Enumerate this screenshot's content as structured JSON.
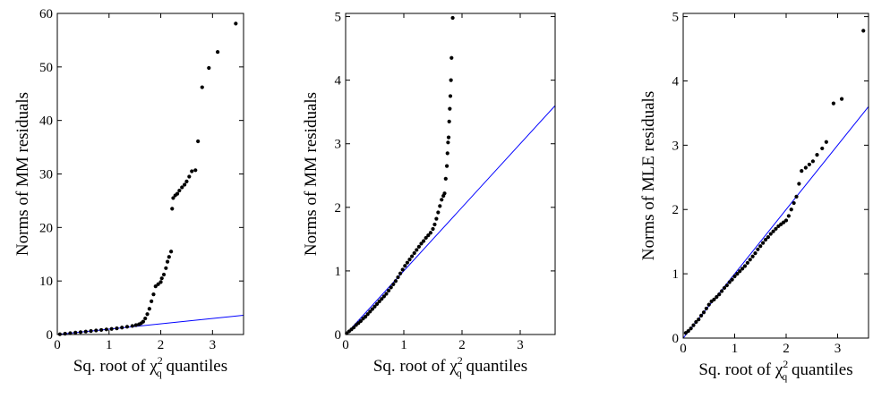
{
  "colors": {
    "points": "#000000",
    "reference_line": "#0000ff",
    "frame": "#000000",
    "background": "#ffffff"
  },
  "chart_data": [
    {
      "type": "scatter",
      "title": "",
      "xlabel": {
        "prefix": "Sq. root of ",
        "symbol": "χ",
        "sup": "2",
        "sub": "q",
        "suffix": " quantiles"
      },
      "ylabel": "Norms of MM residuals",
      "xlim": [
        0,
        3.6
      ],
      "ylim": [
        0,
        60
      ],
      "x_ticks": [
        "0",
        "1",
        "2",
        "3"
      ],
      "y_ticks": [
        "0",
        "10",
        "20",
        "30",
        "40",
        "50",
        "60"
      ],
      "grid": false,
      "legend": "none",
      "reference_line": {
        "x": [
          0,
          3.6
        ],
        "y": [
          0,
          3.6
        ]
      },
      "points": {
        "x": [
          0.05,
          0.15,
          0.25,
          0.35,
          0.45,
          0.55,
          0.65,
          0.75,
          0.85,
          0.95,
          1.05,
          1.15,
          1.25,
          1.35,
          1.45,
          1.52,
          1.58,
          1.62,
          1.66,
          1.7,
          1.74,
          1.78,
          1.82,
          1.86,
          1.9,
          1.95,
          2.0,
          2.02,
          2.06,
          2.1,
          2.13,
          2.16,
          2.2,
          2.22,
          2.24,
          2.28,
          2.32,
          2.36,
          2.41,
          2.46,
          2.5,
          2.55,
          2.6,
          2.67,
          2.72,
          2.8,
          2.93,
          3.1,
          3.45
        ],
        "y": [
          0.05,
          0.15,
          0.25,
          0.35,
          0.45,
          0.55,
          0.65,
          0.75,
          0.85,
          0.95,
          1.05,
          1.15,
          1.3,
          1.45,
          1.6,
          1.75,
          1.9,
          2.1,
          2.4,
          3.0,
          3.8,
          4.8,
          6.2,
          7.5,
          9.0,
          9.4,
          9.8,
          10.5,
          11.2,
          12.4,
          13.6,
          14.5,
          15.5,
          23.5,
          25.5,
          26.0,
          26.3,
          26.9,
          27.5,
          28.0,
          28.6,
          29.5,
          30.5,
          30.7,
          36.1,
          46.2,
          49.8,
          52.8,
          58.1
        ]
      }
    },
    {
      "type": "scatter",
      "title": "",
      "xlabel": {
        "prefix": "Sq. root of ",
        "symbol": "χ",
        "sup": "2",
        "sub": "q",
        "suffix": " quantiles"
      },
      "ylabel": "Norms of MM residuals",
      "xlim": [
        0,
        3.6
      ],
      "ylim": [
        0,
        5.05
      ],
      "x_ticks": [
        "0",
        "1",
        "2",
        "3"
      ],
      "y_ticks": [
        "0",
        "1",
        "2",
        "3",
        "4",
        "5"
      ],
      "grid": false,
      "legend": "none",
      "reference_line": {
        "x": [
          0,
          3.6
        ],
        "y": [
          0,
          3.6
        ]
      },
      "points": {
        "x": [
          0.02,
          0.06,
          0.1,
          0.14,
          0.18,
          0.22,
          0.26,
          0.3,
          0.34,
          0.38,
          0.42,
          0.46,
          0.5,
          0.54,
          0.58,
          0.62,
          0.66,
          0.7,
          0.74,
          0.78,
          0.82,
          0.86,
          0.9,
          0.94,
          0.98,
          1.02,
          1.06,
          1.1,
          1.14,
          1.18,
          1.22,
          1.26,
          1.3,
          1.34,
          1.38,
          1.42,
          1.46,
          1.5,
          1.53,
          1.56,
          1.59,
          1.62,
          1.65,
          1.68,
          1.7,
          1.72,
          1.74,
          1.75,
          1.76,
          1.77,
          1.78,
          1.79,
          1.8,
          1.81,
          1.82,
          1.84
        ],
        "y": [
          0.02,
          0.05,
          0.08,
          0.11,
          0.15,
          0.18,
          0.21,
          0.25,
          0.28,
          0.32,
          0.36,
          0.4,
          0.44,
          0.48,
          0.52,
          0.56,
          0.6,
          0.64,
          0.69,
          0.74,
          0.79,
          0.84,
          0.9,
          0.96,
          1.02,
          1.08,
          1.13,
          1.18,
          1.23,
          1.28,
          1.33,
          1.38,
          1.43,
          1.47,
          1.52,
          1.56,
          1.6,
          1.66,
          1.73,
          1.82,
          1.92,
          2.02,
          2.12,
          2.18,
          2.22,
          2.45,
          2.65,
          2.85,
          3.02,
          3.1,
          3.35,
          3.55,
          3.75,
          4.0,
          4.35,
          4.98
        ]
      }
    },
    {
      "type": "scatter",
      "title": "",
      "xlabel": {
        "prefix": "Sq. root of ",
        "symbol": "χ",
        "sup": "2",
        "sub": "q",
        "suffix": " quantiles"
      },
      "ylabel": "Norms of MLE residuals",
      "xlim": [
        0,
        3.6
      ],
      "ylim": [
        0,
        5.05
      ],
      "x_ticks": [
        "0",
        "1",
        "2",
        "3"
      ],
      "y_ticks": [
        "0",
        "1",
        "2",
        "3",
        "4",
        "5"
      ],
      "grid": false,
      "legend": "none",
      "reference_line": {
        "x": [
          0,
          3.6
        ],
        "y": [
          0,
          3.6
        ]
      },
      "points": {
        "x": [
          0.05,
          0.1,
          0.15,
          0.2,
          0.25,
          0.3,
          0.35,
          0.4,
          0.45,
          0.5,
          0.55,
          0.6,
          0.65,
          0.7,
          0.75,
          0.8,
          0.85,
          0.9,
          0.95,
          1.0,
          1.05,
          1.1,
          1.15,
          1.2,
          1.25,
          1.3,
          1.35,
          1.4,
          1.45,
          1.5,
          1.55,
          1.6,
          1.65,
          1.7,
          1.75,
          1.8,
          1.85,
          1.9,
          1.95,
          2.0,
          2.05,
          2.1,
          2.15,
          2.2,
          2.25,
          2.3,
          2.38,
          2.45,
          2.52,
          2.6,
          2.7,
          2.78,
          2.92,
          3.08,
          3.5
        ],
        "y": [
          0.08,
          0.11,
          0.15,
          0.2,
          0.25,
          0.29,
          0.35,
          0.4,
          0.46,
          0.52,
          0.57,
          0.6,
          0.64,
          0.68,
          0.73,
          0.78,
          0.82,
          0.87,
          0.91,
          0.96,
          1.0,
          1.04,
          1.08,
          1.12,
          1.17,
          1.22,
          1.27,
          1.32,
          1.38,
          1.43,
          1.48,
          1.53,
          1.57,
          1.62,
          1.66,
          1.7,
          1.74,
          1.77,
          1.8,
          1.83,
          1.9,
          2.0,
          2.1,
          2.2,
          2.4,
          2.6,
          2.65,
          2.7,
          2.75,
          2.85,
          2.95,
          3.05,
          3.65,
          3.72,
          4.78
        ]
      }
    }
  ]
}
